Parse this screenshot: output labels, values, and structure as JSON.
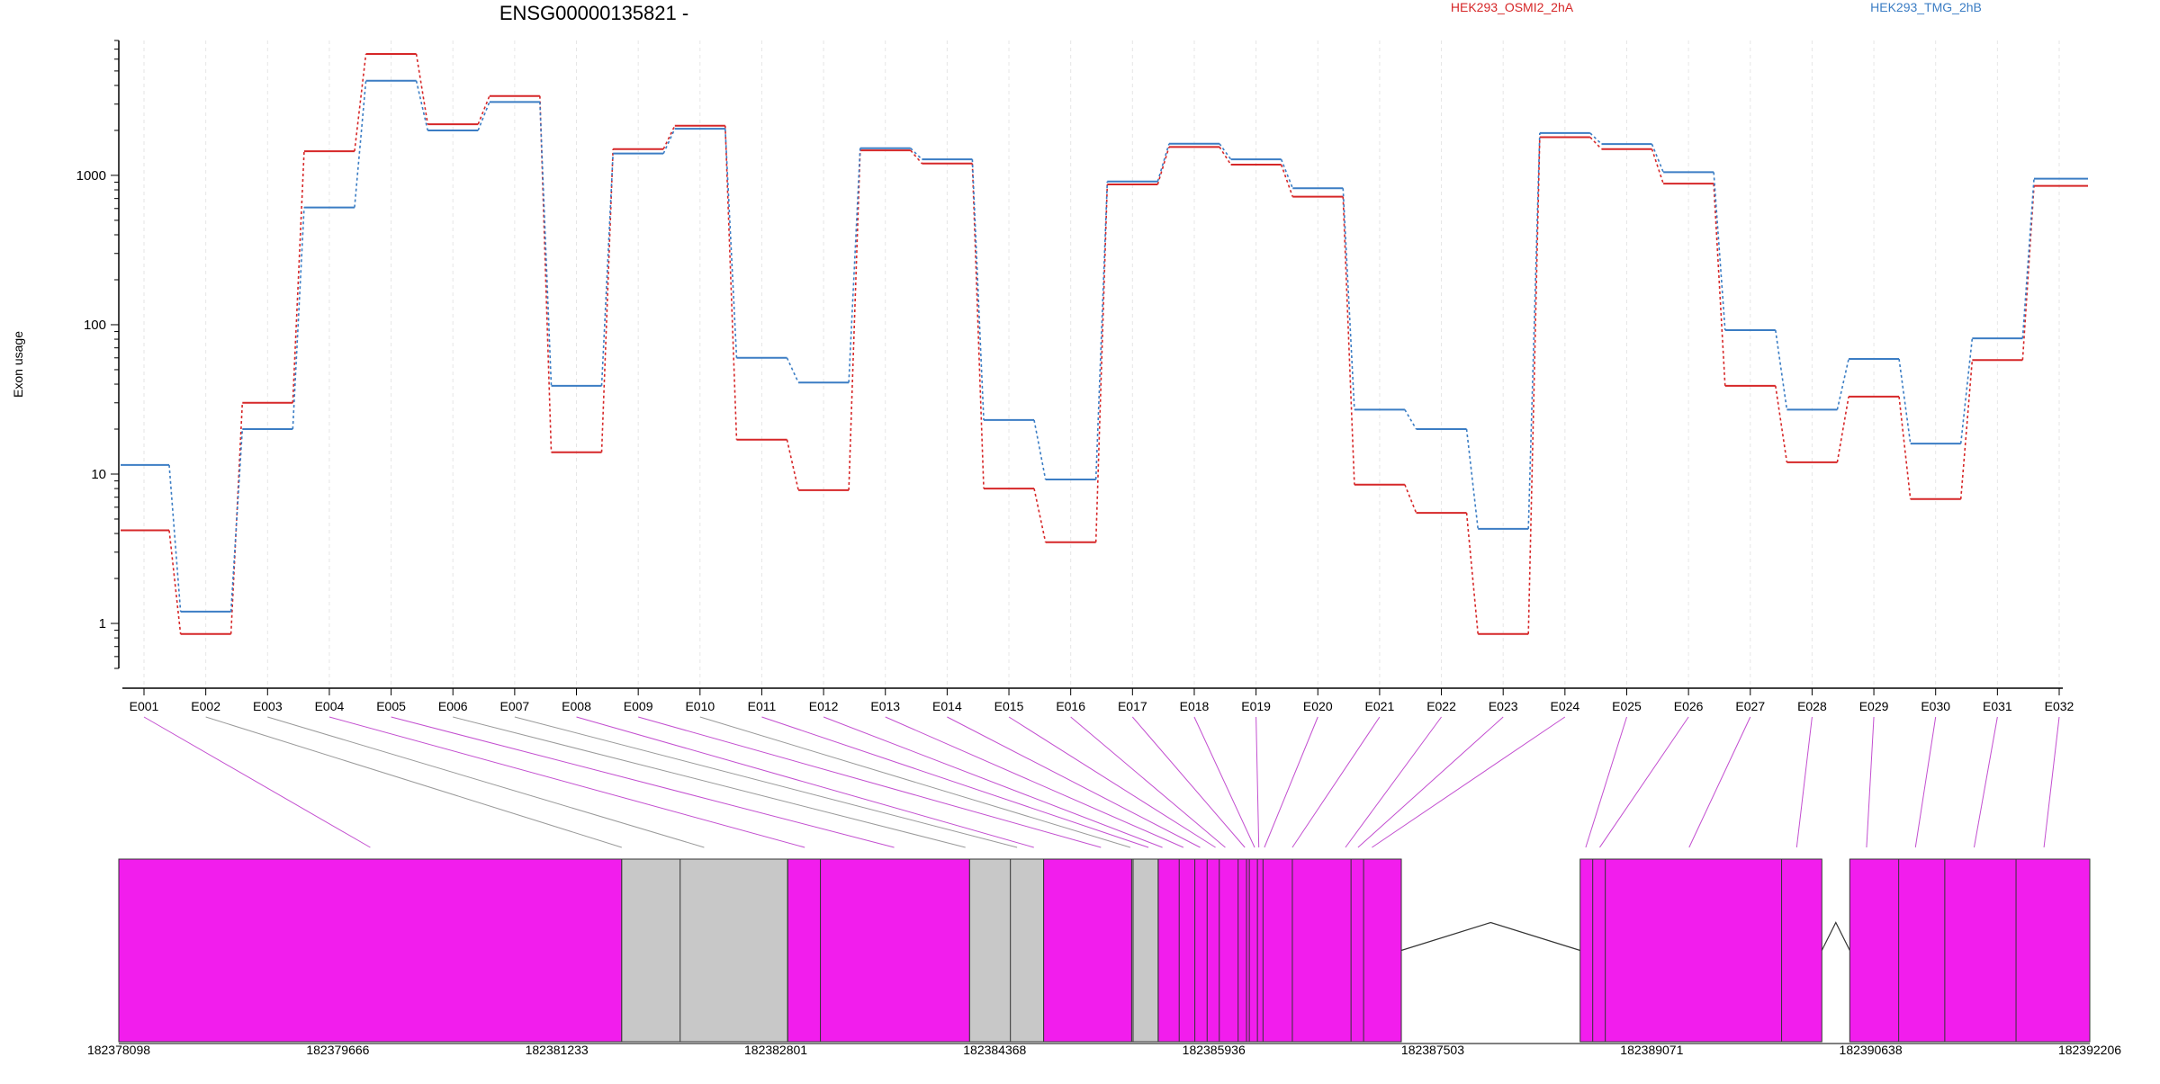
{
  "chart_data": {
    "type": "line",
    "title": "ENSG00000135821 -",
    "ylabel": "Exon usage",
    "y_scale": "log",
    "ylim": [
      0.5,
      8000
    ],
    "y_ticks": [
      "1",
      "10",
      "100",
      "1000"
    ],
    "y_tick_values": [
      1,
      10,
      100,
      1000
    ],
    "categories": [
      "E001",
      "E002",
      "E003",
      "E004",
      "E005",
      "E006",
      "E007",
      "E008",
      "E009",
      "E010",
      "E011",
      "E012",
      "E013",
      "E014",
      "E015",
      "E016",
      "E017",
      "E018",
      "E019",
      "E020",
      "E021",
      "E022",
      "E023",
      "E024",
      "E025",
      "E026",
      "E027",
      "E028",
      "E029",
      "E030",
      "E031",
      "E032"
    ],
    "series": [
      {
        "name": "HEK293_OSMI2_2hA",
        "color": "#d62728",
        "values": [
          4.2,
          0.85,
          30,
          1450,
          6500,
          2200,
          3400,
          14,
          1500,
          2150,
          17,
          7.8,
          1470,
          1200,
          8,
          3.5,
          870,
          1550,
          1180,
          720,
          8.5,
          5.5,
          0.85,
          1800,
          1500,
          880,
          39,
          12,
          33,
          6.8,
          58,
          850
        ]
      },
      {
        "name": "HEK293_TMG_2hB",
        "color": "#3b7dc4",
        "values": [
          11.5,
          1.2,
          20,
          610,
          4300,
          2000,
          3100,
          39,
          1400,
          2050,
          60,
          41,
          1520,
          1280,
          23,
          9.2,
          910,
          1630,
          1280,
          820,
          27,
          20,
          4.3,
          1920,
          1620,
          1050,
          92,
          27,
          59,
          16,
          81,
          950
        ]
      }
    ],
    "exon_line_colors": [
      "#c34fd0",
      "#9a9a9a",
      "#9a9a9a",
      "#c34fd0",
      "#c34fd0",
      "#9a9a9a",
      "#9a9a9a",
      "#c34fd0",
      "#c34fd0",
      "#9a9a9a",
      "#c34fd0",
      "#c34fd0",
      "#c34fd0",
      "#c34fd0",
      "#c34fd0",
      "#c34fd0",
      "#c34fd0",
      "#c34fd0",
      "#c34fd0",
      "#c34fd0",
      "#c34fd0",
      "#c34fd0",
      "#c34fd0",
      "#c34fd0",
      "#c34fd0",
      "#c34fd0",
      "#c34fd0",
      "#c34fd0",
      "#c34fd0",
      "#c34fd0",
      "#c34fd0",
      "#c34fd0"
    ],
    "gene_model": {
      "coordinates": [
        "182378098",
        "182379666",
        "182381233",
        "182382801",
        "182384368",
        "182385936",
        "182387503",
        "182389071",
        "182390638",
        "182392206"
      ],
      "start": 182378098,
      "end": 182392206,
      "exon_color": "#f21ded",
      "nontested_color": "#c8c8c8",
      "blocks": [
        {
          "start": 182378098,
          "end": 182381698,
          "type": "exon"
        },
        {
          "start": 182381698,
          "end": 182382886,
          "type": "nontested"
        },
        {
          "start": 182382886,
          "end": 182384188,
          "type": "exon"
        },
        {
          "start": 182384188,
          "end": 182384718,
          "type": "nontested"
        },
        {
          "start": 182384718,
          "end": 182385348,
          "type": "exon"
        },
        {
          "start": 182385348,
          "end": 182385538,
          "type": "nontested"
        },
        {
          "start": 182385538,
          "end": 182387278,
          "type": "exon"
        },
        {
          "start": 182388558,
          "end": 182390288,
          "type": "exon"
        },
        {
          "start": 182390488,
          "end": 182392206,
          "type": "exon"
        }
      ],
      "internal_lines": [
        182382116,
        182382886,
        182383120,
        182384480,
        182385358,
        182385538,
        182385688,
        182385800,
        182385888,
        182385975,
        182386110,
        182386170,
        182386190,
        182386248,
        182386288,
        182386498,
        182386918,
        182387008,
        182388648,
        182388738,
        182390000,
        182390838,
        182391168,
        182391678
      ],
      "introns": [
        {
          "start": 182387278,
          "end": 182388558
        },
        {
          "start": 182390288,
          "end": 182390488
        }
      ],
      "exon_mid": [
        182379898,
        182381698,
        182382288,
        182383008,
        182383648,
        182384158,
        182384528,
        182384648,
        182385128,
        182385338,
        182385468,
        182385568,
        182385718,
        182385838,
        182385948,
        182386018,
        182386158,
        182386228,
        182386258,
        182386298,
        182386498,
        182386878,
        182386968,
        182387068,
        182388598,
        182388698,
        182389338,
        182390108,
        182390608,
        182390958,
        182391378,
        182391878
      ]
    }
  }
}
